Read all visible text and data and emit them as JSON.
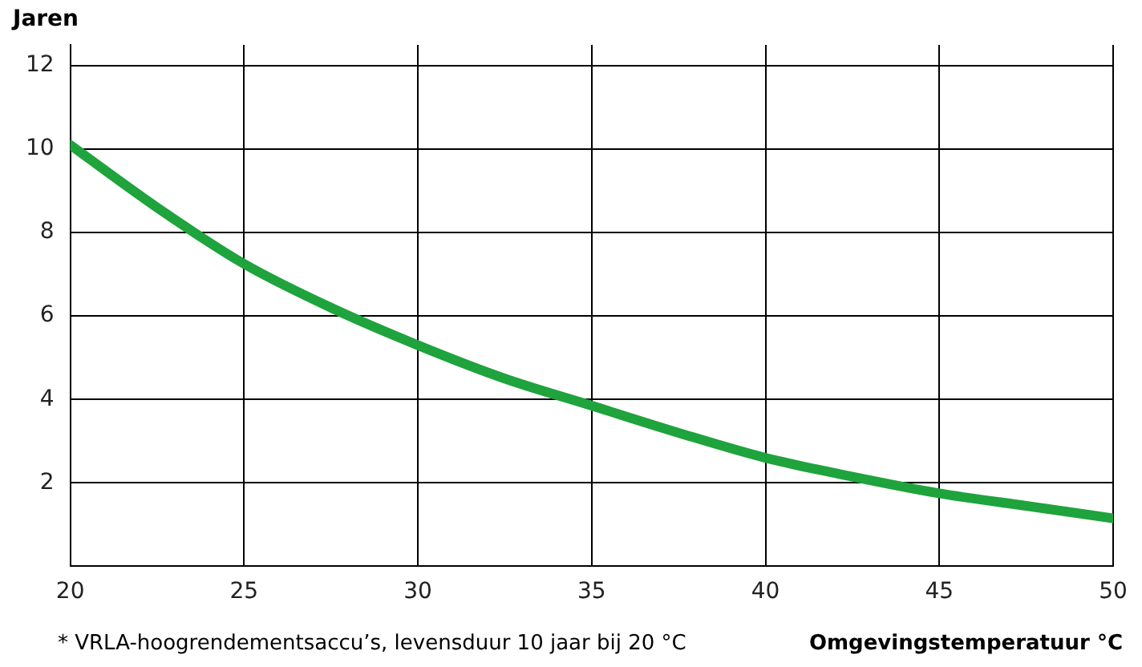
{
  "chart_data": {
    "type": "line",
    "ylabel": "Jaren",
    "xlabel": "Omgevingstemperatuur °C",
    "annotations": [
      "* VRLA-hoogrendementsaccu’s, levensduur 10 jaar bij 20 °C"
    ],
    "x": [
      20,
      22.5,
      25,
      27.5,
      30,
      32.5,
      35,
      37.5,
      40,
      42.5,
      45,
      47.5,
      50
    ],
    "series": [
      {
        "color": "#1fa33c",
        "values": [
          10.1,
          8.6,
          7.25,
          6.2,
          5.3,
          4.5,
          3.85,
          3.2,
          2.6,
          2.15,
          1.75,
          1.45,
          1.15
        ]
      }
    ],
    "xlim": [
      20,
      50
    ],
    "ylim": [
      0,
      12.5
    ],
    "xticks": [
      20,
      25,
      30,
      35,
      40,
      45,
      50
    ],
    "yticks": [
      2,
      4,
      6,
      8,
      10,
      12
    ],
    "grid": true
  }
}
